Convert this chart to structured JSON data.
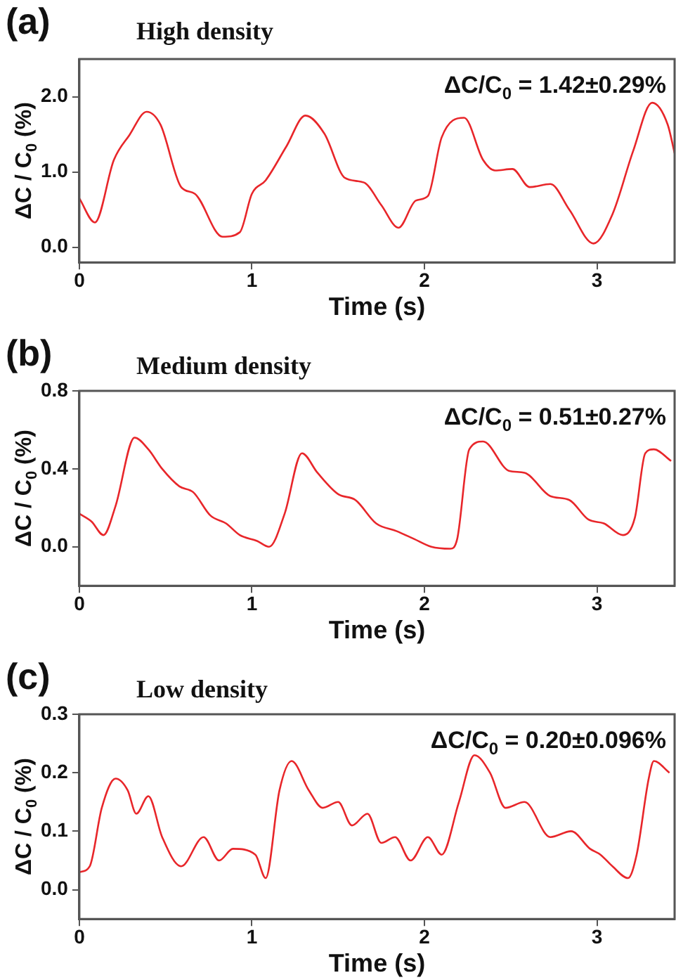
{
  "chart_data": [
    {
      "type": "line",
      "title": "High density",
      "xlabel": "Time (s)",
      "ylabel": "ΔC / C$_{0}$ (%)",
      "annotations": [
        "(a)",
        "ΔC/C$_{0}$ = 1.42±0.29%"
      ],
      "grid": false,
      "legend": false,
      "xlim": [
        0,
        3.45
      ],
      "xticks": [
        0,
        1,
        2,
        3
      ],
      "ylim": [
        -0.2,
        2.5
      ],
      "yticks": [
        {
          "value": 0,
          "label": "0.0"
        },
        {
          "value": 1,
          "label": "1.0"
        },
        {
          "value": 2,
          "label": "2.0"
        }
      ],
      "x": [
        0,
        0.09,
        0.2,
        0.29,
        0.39,
        0.47,
        0.59,
        0.67,
        0.83,
        0.93,
        1.0,
        1.08,
        1.2,
        1.31,
        1.42,
        1.54,
        1.65,
        1.75,
        1.85,
        1.95,
        2.02,
        2.1,
        2.23,
        2.34,
        2.41,
        2.51,
        2.61,
        2.73,
        2.84,
        2.98,
        3.09,
        3.21,
        3.32,
        3.41,
        3.45
      ],
      "series": [
        {
          "color": "#e8262a",
          "values": [
            0.65,
            0.33,
            1.16,
            1.49,
            1.8,
            1.63,
            0.8,
            0.71,
            0.14,
            0.2,
            0.71,
            0.89,
            1.34,
            1.75,
            1.51,
            0.92,
            0.86,
            0.56,
            0.26,
            0.62,
            0.68,
            1.46,
            1.72,
            1.16,
            1.02,
            1.04,
            0.8,
            0.84,
            0.5,
            0.05,
            0.44,
            1.28,
            1.92,
            1.63,
            1.25
          ]
        }
      ]
    },
    {
      "type": "line",
      "title": "Medium density",
      "xlabel": "Time (s)",
      "ylabel": "ΔC / C$_{0}$ (%)",
      "annotations": [
        "(b)",
        "ΔC/C$_{0}$ = 0.51±0.27%"
      ],
      "grid": false,
      "legend": false,
      "xlim": [
        0,
        3.45
      ],
      "xticks": [
        0,
        1,
        2,
        3
      ],
      "ylim": [
        -0.2,
        0.8
      ],
      "yticks": [
        {
          "value": 0,
          "label": "0.0"
        },
        0.4,
        0.8
      ],
      "x": [
        0,
        0.07,
        0.14,
        0.21,
        0.32,
        0.4,
        0.48,
        0.58,
        0.66,
        0.76,
        0.85,
        0.93,
        1.03,
        1.1,
        1.19,
        1.29,
        1.38,
        1.5,
        1.6,
        1.72,
        1.84,
        1.94,
        2.04,
        2.15,
        2.19,
        2.26,
        2.34,
        2.49,
        2.58,
        2.73,
        2.84,
        2.95,
        3.04,
        3.15,
        3.22,
        3.28,
        3.33,
        3.43
      ],
      "series": [
        {
          "color": "#e8262a",
          "values": [
            0.17,
            0.13,
            0.06,
            0.21,
            0.56,
            0.5,
            0.4,
            0.31,
            0.28,
            0.16,
            0.12,
            0.06,
            0.03,
            0.0,
            0.17,
            0.48,
            0.38,
            0.27,
            0.24,
            0.12,
            0.08,
            0.04,
            0.0,
            -0.01,
            0.04,
            0.5,
            0.54,
            0.39,
            0.38,
            0.26,
            0.24,
            0.14,
            0.12,
            0.06,
            0.15,
            0.48,
            0.5,
            0.44
          ]
        }
      ]
    },
    {
      "type": "line",
      "title": "Low density",
      "xlabel": "Time (s)",
      "ylabel": "ΔC / C$_{0}$ (%)",
      "annotations": [
        "(c)",
        "ΔC/C$_{0}$ = 0.20±0.096%"
      ],
      "grid": false,
      "legend": false,
      "xlim": [
        0,
        3.45
      ],
      "xticks": [
        0,
        1,
        2,
        3
      ],
      "ylim": [
        -0.05,
        0.3
      ],
      "yticks": [
        {
          "value": 0,
          "label": "0.0"
        },
        0.1,
        0.2,
        0.3
      ],
      "x": [
        0,
        0.06,
        0.13,
        0.21,
        0.28,
        0.33,
        0.4,
        0.48,
        0.59,
        0.72,
        0.81,
        0.89,
        1.02,
        1.08,
        1.16,
        1.23,
        1.33,
        1.41,
        1.5,
        1.58,
        1.67,
        1.75,
        1.83,
        1.92,
        2.02,
        2.1,
        2.2,
        2.29,
        2.38,
        2.47,
        2.58,
        2.73,
        2.85,
        2.96,
        3.02,
        3.09,
        3.18,
        3.23,
        3.3,
        3.33,
        3.42
      ],
      "series": [
        {
          "color": "#e8262a",
          "values": [
            0.03,
            0.04,
            0.14,
            0.19,
            0.17,
            0.13,
            0.16,
            0.09,
            0.04,
            0.09,
            0.05,
            0.07,
            0.06,
            0.02,
            0.17,
            0.22,
            0.17,
            0.14,
            0.15,
            0.11,
            0.13,
            0.08,
            0.09,
            0.05,
            0.09,
            0.06,
            0.15,
            0.23,
            0.2,
            0.14,
            0.15,
            0.09,
            0.1,
            0.07,
            0.06,
            0.04,
            0.02,
            0.06,
            0.19,
            0.22,
            0.2
          ]
        }
      ]
    }
  ]
}
